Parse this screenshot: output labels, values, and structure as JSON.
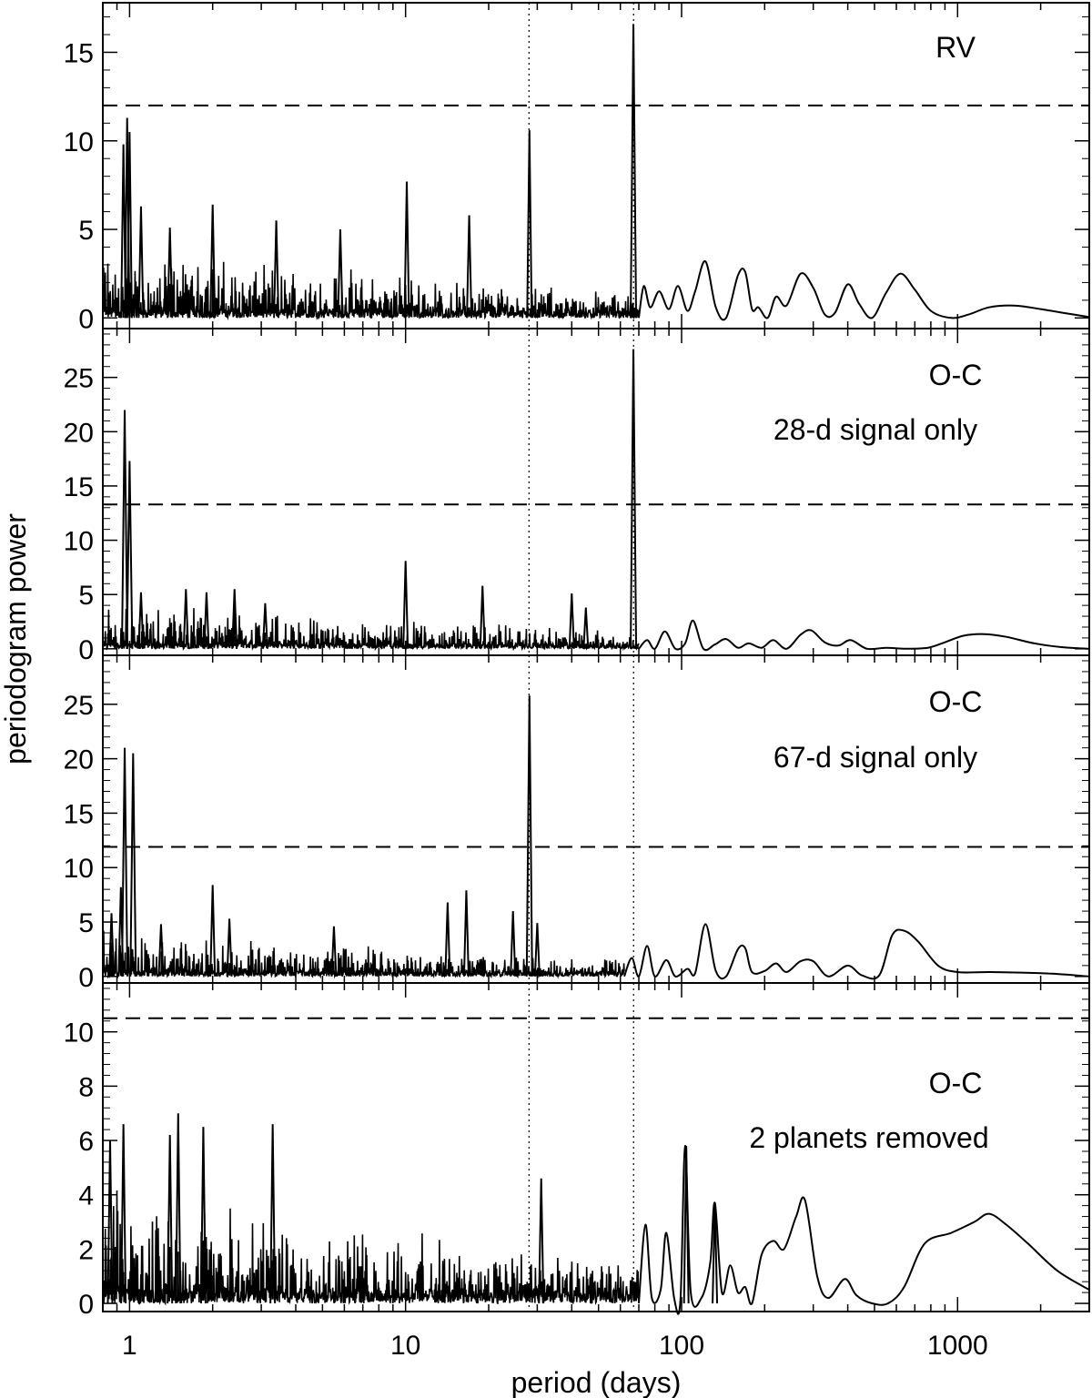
{
  "figure": {
    "ylabel": "periodogram power",
    "xlabel": "period (days)"
  },
  "chart_data": [
    {
      "type": "line",
      "label": "RV",
      "sublabel": "",
      "xscale": "log",
      "xlim": [
        0.8,
        3000
      ],
      "ylim": [
        -0.6,
        17.8
      ],
      "yticks": [
        0,
        5,
        10,
        15
      ],
      "threshold": 12.0,
      "marked_periods": [
        28,
        67
      ],
      "peaks": [
        [
          0.95,
          9.8
        ],
        [
          0.98,
          11.3
        ],
        [
          1.0,
          10.5
        ],
        [
          1.1,
          6.3
        ],
        [
          1.4,
          5.1
        ],
        [
          2.0,
          6.4
        ],
        [
          3.4,
          5.5
        ],
        [
          5.8,
          5.0
        ],
        [
          10.1,
          7.7
        ],
        [
          17.0,
          5.8
        ],
        [
          28.1,
          10.6
        ],
        [
          66.9,
          16.6
        ]
      ],
      "smooth": [
        [
          70,
          0.0
        ],
        [
          73,
          1.8
        ],
        [
          77,
          0.6
        ],
        [
          83,
          1.5
        ],
        [
          90,
          0.5
        ],
        [
          97,
          1.8
        ],
        [
          105,
          0.4
        ],
        [
          112,
          1.5
        ],
        [
          122,
          3.2
        ],
        [
          133,
          0.6
        ],
        [
          145,
          0.0
        ],
        [
          160,
          2.4
        ],
        [
          170,
          2.6
        ],
        [
          180,
          0.5
        ],
        [
          190,
          0.6
        ],
        [
          205,
          0.0
        ],
        [
          220,
          1.2
        ],
        [
          240,
          0.7
        ],
        [
          270,
          2.5
        ],
        [
          300,
          1.7
        ],
        [
          330,
          0.2
        ],
        [
          360,
          0.3
        ],
        [
          400,
          1.9
        ],
        [
          440,
          0.8
        ],
        [
          490,
          0.0
        ],
        [
          550,
          1.4
        ],
        [
          620,
          2.5
        ],
        [
          700,
          1.6
        ],
        [
          800,
          0.4
        ],
        [
          950,
          0.0
        ],
        [
          1100,
          0.2
        ],
        [
          1300,
          0.6
        ],
        [
          1600,
          0.7
        ],
        [
          2000,
          0.5
        ],
        [
          2500,
          0.25
        ],
        [
          3000,
          0.05
        ]
      ]
    },
    {
      "type": "line",
      "label": "O-C",
      "sublabel": "28-d signal only",
      "xscale": "log",
      "xlim": [
        0.8,
        3000
      ],
      "ylim": [
        -0.6,
        29.5
      ],
      "yticks": [
        0,
        5,
        10,
        15,
        20,
        25
      ],
      "threshold": 13.3,
      "marked_periods": [
        28,
        67
      ],
      "peaks": [
        [
          0.96,
          22.0
        ],
        [
          1.0,
          17.3
        ],
        [
          1.1,
          5.2
        ],
        [
          1.6,
          5.5
        ],
        [
          1.9,
          5.2
        ],
        [
          2.4,
          5.5
        ],
        [
          3.1,
          4.2
        ],
        [
          10.0,
          8.1
        ],
        [
          19.0,
          5.8
        ],
        [
          40.0,
          5.1
        ],
        [
          45.0,
          3.8
        ],
        [
          66.9,
          27.6
        ]
      ],
      "smooth": [
        [
          70,
          0.0
        ],
        [
          75,
          0.8
        ],
        [
          80,
          0.0
        ],
        [
          87,
          1.6
        ],
        [
          95,
          0.0
        ],
        [
          103,
          0.5
        ],
        [
          110,
          2.6
        ],
        [
          120,
          0.0
        ],
        [
          132,
          0.4
        ],
        [
          145,
          0.9
        ],
        [
          160,
          0.1
        ],
        [
          175,
          0.5
        ],
        [
          195,
          0.1
        ],
        [
          215,
          0.8
        ],
        [
          240,
          0.0
        ],
        [
          270,
          1.3
        ],
        [
          295,
          1.7
        ],
        [
          330,
          0.6
        ],
        [
          370,
          0.3
        ],
        [
          410,
          0.8
        ],
        [
          470,
          0.0
        ],
        [
          550,
          0.1
        ],
        [
          650,
          0.0
        ],
        [
          780,
          0.1
        ],
        [
          900,
          0.6
        ],
        [
          1050,
          1.2
        ],
        [
          1250,
          1.35
        ],
        [
          1500,
          1.1
        ],
        [
          1900,
          0.5
        ],
        [
          2400,
          0.15
        ],
        [
          3000,
          0.0
        ]
      ]
    },
    {
      "type": "line",
      "label": "O-C",
      "sublabel": "67-d signal only",
      "xscale": "log",
      "xlim": [
        0.8,
        3000
      ],
      "ylim": [
        -0.6,
        29.5
      ],
      "yticks": [
        0,
        5,
        10,
        15,
        20,
        25
      ],
      "threshold": 11.9,
      "marked_periods": [
        28,
        67
      ],
      "peaks": [
        [
          0.93,
          8.2
        ],
        [
          0.96,
          21.0
        ],
        [
          1.03,
          20.5
        ],
        [
          0.86,
          5.8
        ],
        [
          1.3,
          4.8
        ],
        [
          2.0,
          8.4
        ],
        [
          2.3,
          5.3
        ],
        [
          5.5,
          4.6
        ],
        [
          14.2,
          6.8
        ],
        [
          16.6,
          7.9
        ],
        [
          24.5,
          6.0
        ],
        [
          28.1,
          25.8
        ],
        [
          30.0,
          4.9
        ]
      ],
      "smooth": [
        [
          62,
          0.0
        ],
        [
          66,
          1.7
        ],
        [
          70,
          0.0
        ],
        [
          75,
          2.8
        ],
        [
          80,
          0.0
        ],
        [
          88,
          1.5
        ],
        [
          95,
          0.0
        ],
        [
          105,
          0.7
        ],
        [
          112,
          0.3
        ],
        [
          122,
          4.8
        ],
        [
          133,
          0.5
        ],
        [
          145,
          0.0
        ],
        [
          160,
          2.5
        ],
        [
          170,
          2.6
        ],
        [
          180,
          0.4
        ],
        [
          200,
          0.5
        ],
        [
          220,
          1.2
        ],
        [
          240,
          0.4
        ],
        [
          270,
          1.4
        ],
        [
          300,
          1.4
        ],
        [
          340,
          0.0
        ],
        [
          400,
          1.0
        ],
        [
          450,
          0.1
        ],
        [
          520,
          0.1
        ],
        [
          580,
          3.8
        ],
        [
          640,
          4.2
        ],
        [
          720,
          3.2
        ],
        [
          850,
          1.0
        ],
        [
          1000,
          0.4
        ],
        [
          1300,
          0.4
        ],
        [
          1700,
          0.35
        ],
        [
          2200,
          0.25
        ],
        [
          3000,
          0.0
        ]
      ]
    },
    {
      "type": "line",
      "label": "O-C",
      "sublabel": "2 planets removed",
      "xscale": "log",
      "xlim": [
        0.8,
        3000
      ],
      "ylim": [
        -0.3,
        11.8
      ],
      "yticks": [
        0,
        2,
        4,
        6,
        8,
        10
      ],
      "threshold": 10.5,
      "marked_periods": [
        28,
        67
      ],
      "peaks": [
        [
          0.85,
          6.0
        ],
        [
          0.95,
          6.6
        ],
        [
          1.4,
          6.2
        ],
        [
          1.5,
          7.0
        ],
        [
          1.85,
          6.5
        ],
        [
          3.3,
          6.6
        ],
        [
          31.0,
          4.6
        ],
        [
          104.0,
          5.8
        ],
        [
          132.0,
          3.7
        ]
      ],
      "smooth": [
        [
          70,
          0.0
        ],
        [
          74,
          2.9
        ],
        [
          78,
          0.2
        ],
        [
          84,
          0.5
        ],
        [
          88,
          2.6
        ],
        [
          94,
          0.2
        ],
        [
          99,
          0.1
        ],
        [
          103,
          5.8
        ],
        [
          108,
          0.4
        ],
        [
          118,
          0.2
        ],
        [
          127,
          1.5
        ],
        [
          132,
          3.7
        ],
        [
          140,
          0.4
        ],
        [
          150,
          1.4
        ],
        [
          160,
          0.4
        ],
        [
          170,
          0.6
        ],
        [
          180,
          0.0
        ],
        [
          195,
          1.8
        ],
        [
          215,
          2.3
        ],
        [
          235,
          2.0
        ],
        [
          260,
          3.2
        ],
        [
          280,
          3.8
        ],
        [
          310,
          1.0
        ],
        [
          340,
          0.2
        ],
        [
          390,
          0.9
        ],
        [
          430,
          0.3
        ],
        [
          490,
          0.0
        ],
        [
          560,
          0.0
        ],
        [
          640,
          0.6
        ],
        [
          760,
          2.2
        ],
        [
          950,
          2.6
        ],
        [
          1150,
          3.0
        ],
        [
          1300,
          3.3
        ],
        [
          1500,
          2.9
        ],
        [
          1800,
          2.2
        ],
        [
          2300,
          1.2
        ],
        [
          3000,
          0.5
        ]
      ]
    }
  ]
}
